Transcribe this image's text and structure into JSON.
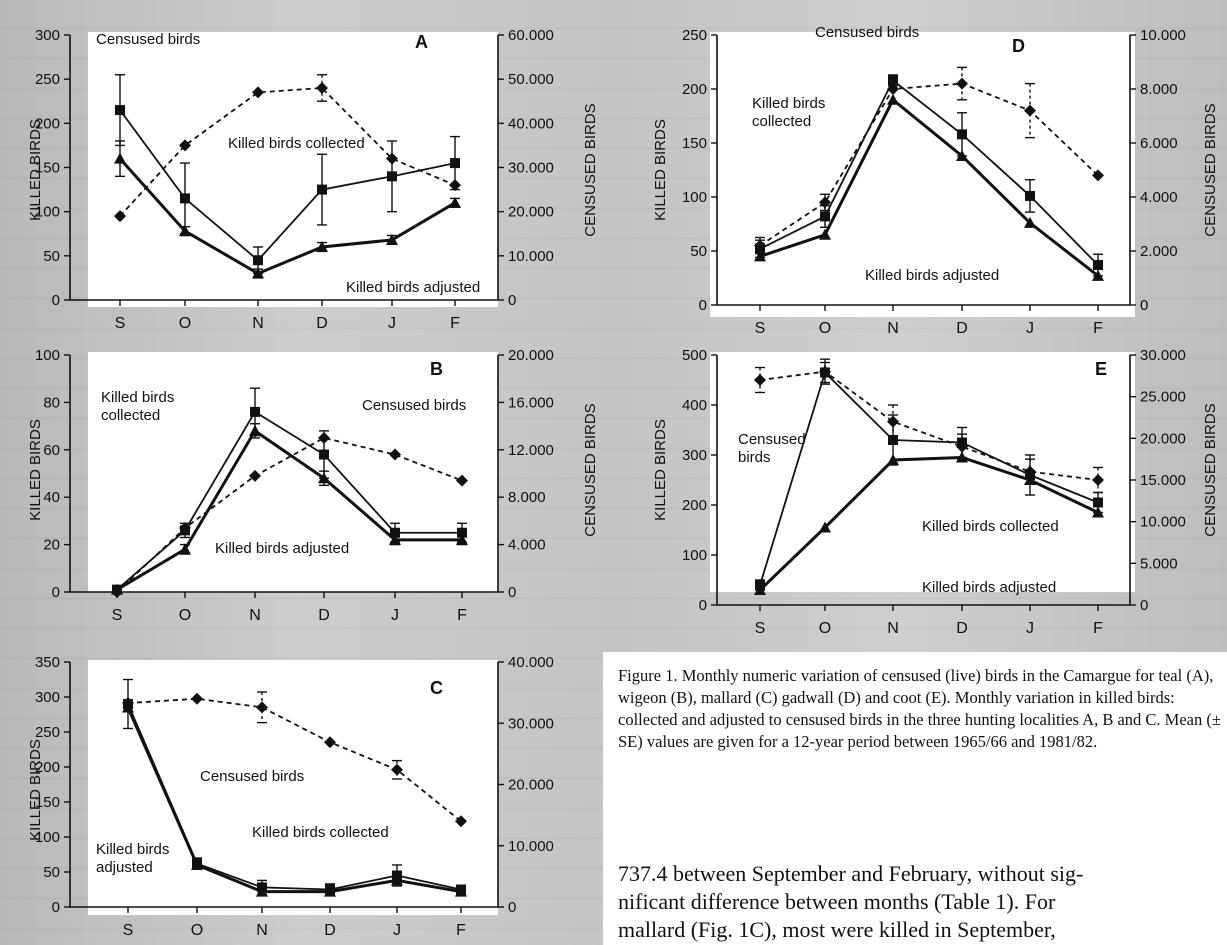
{
  "caption": "Figure 1. Monthly numeric variation of censused (live) birds in the Camargue for teal (A), wigeon (B), mallard (C) gadwall (D) and coot (E). Monthly variation in killed birds: collected and adjusted to censused birds in the three hunting localities A, B and C. Mean (± SE) values are given for a 12-year period between 1965/66 and 1981/82.",
  "body_text": "737.4 between September and February, without sig-\nnificant difference between months (Table 1). For\nmallard (Fig. 1C), most were killed in September,",
  "colors": {
    "ink": "#111111",
    "panel": "#ffffff",
    "page": "#c9c9c9"
  },
  "chart_data": [
    {
      "type": "line",
      "panel": "A",
      "categories": [
        "S",
        "O",
        "N",
        "D",
        "J",
        "F"
      ],
      "ylabel": "KILLED BIRDS",
      "y2label": "CENSUSED BIRDS",
      "ylim": [
        0,
        300
      ],
      "y2lim": [
        0,
        60000
      ],
      "yticks": [
        "0",
        "50",
        "100",
        "150",
        "200",
        "250",
        "300"
      ],
      "y2ticks": [
        "0",
        "10.000",
        "20.000",
        "30.000",
        "40.000",
        "50.000",
        "60.000"
      ],
      "series": [
        {
          "name": "Killed birds collected",
          "marker": "square",
          "axis": "left",
          "values": [
            215,
            115,
            45,
            125,
            140,
            155
          ],
          "errors": [
            40,
            40,
            15,
            40,
            40,
            30
          ]
        },
        {
          "name": "Killed birds adjusted",
          "marker": "triangle",
          "axis": "left",
          "values": [
            160,
            78,
            30,
            60,
            68,
            110
          ],
          "errors": [
            20,
            5,
            5,
            5,
            5,
            5
          ]
        },
        {
          "name": "Censused birds",
          "marker": "diamond",
          "axis": "right",
          "dashed": true,
          "values": [
            19000,
            35000,
            47000,
            48000,
            32000,
            26000
          ],
          "errors": [
            0,
            0,
            0,
            3000,
            0,
            0
          ]
        }
      ],
      "annotations": [
        "Censused birds",
        "Killed birds collected",
        "Killed birds adjusted",
        "A"
      ]
    },
    {
      "type": "line",
      "panel": "B",
      "categories": [
        "S",
        "O",
        "N",
        "D",
        "J",
        "F"
      ],
      "ylabel": "KILLED BIRDS",
      "y2label": "CENSUSED BIRDS",
      "ylim": [
        0,
        100
      ],
      "y2lim": [
        0,
        20000
      ],
      "yticks": [
        "0",
        "20",
        "40",
        "60",
        "80",
        "100"
      ],
      "y2ticks": [
        "0",
        "4.000",
        "8.000",
        "12.000",
        "16.000",
        "20.000"
      ],
      "series": [
        {
          "name": "Killed birds collected",
          "marker": "square",
          "axis": "left",
          "values": [
            1,
            26,
            76,
            58,
            25,
            25
          ],
          "errors": [
            0,
            3,
            10,
            10,
            4,
            4
          ]
        },
        {
          "name": "Killed birds adjusted",
          "marker": "triangle",
          "axis": "left",
          "values": [
            1,
            18,
            68,
            48,
            22,
            22
          ],
          "errors": [
            0,
            2,
            3,
            3,
            2,
            2
          ]
        },
        {
          "name": "Censused birds",
          "marker": "diamond",
          "axis": "right",
          "dashed": true,
          "values": [
            0,
            5400,
            9800,
            13000,
            11600,
            9400
          ],
          "errors": [
            0,
            0,
            0,
            0,
            0,
            0
          ]
        }
      ],
      "annotations": [
        "Killed birds collected",
        "Censused birds",
        "Killed birds adjusted",
        "B"
      ]
    },
    {
      "type": "line",
      "panel": "C",
      "categories": [
        "S",
        "O",
        "N",
        "D",
        "J",
        "F"
      ],
      "ylabel": "KILLED BIRDS",
      "y2label": "",
      "ylim": [
        0,
        350
      ],
      "y2lim": [
        0,
        40000
      ],
      "yticks": [
        "0",
        "50",
        "100",
        "150",
        "200",
        "250",
        "300",
        "350"
      ],
      "y2ticks": [
        "0",
        "10.000",
        "20.000",
        "30.000",
        "40.000"
      ],
      "series": [
        {
          "name": "Killed birds collected",
          "marker": "square",
          "axis": "left",
          "values": [
            290,
            62,
            28,
            25,
            45,
            25
          ],
          "errors": [
            35,
            8,
            10,
            8,
            15,
            6
          ]
        },
        {
          "name": "Killed birds adjusted",
          "marker": "triangle",
          "axis": "left",
          "values": [
            285,
            60,
            22,
            22,
            38,
            22
          ],
          "errors": [
            0,
            0,
            0,
            0,
            0,
            0
          ]
        },
        {
          "name": "Censused birds",
          "marker": "diamond",
          "axis": "right",
          "dashed": true,
          "values": [
            33300,
            34000,
            32600,
            26900,
            22400,
            14000
          ],
          "errors": [
            0,
            0,
            2500,
            0,
            1500,
            0
          ]
        }
      ],
      "annotations": [
        "Censused birds",
        "Killed birds collected",
        "Killed birds adjusted",
        "C"
      ]
    },
    {
      "type": "line",
      "panel": "D",
      "categories": [
        "S",
        "O",
        "N",
        "D",
        "J",
        "F"
      ],
      "ylabel": "KILLED BIRDS",
      "y2label": "CENSUSED BIRDS",
      "ylim": [
        0,
        250
      ],
      "y2lim": [
        0,
        10000
      ],
      "yticks": [
        "0",
        "50",
        "100",
        "150",
        "200",
        "250"
      ],
      "y2ticks": [
        "0",
        "2.000",
        "4.000",
        "6.000",
        "8.000",
        "10.000"
      ],
      "series": [
        {
          "name": "Killed birds collected",
          "marker": "square",
          "axis": "left",
          "values": [
            52,
            82,
            208,
            158,
            101,
            37
          ],
          "errors": [
            8,
            10,
            5,
            20,
            15,
            10
          ]
        },
        {
          "name": "Killed birds adjusted",
          "marker": "triangle",
          "axis": "left",
          "values": [
            45,
            65,
            190,
            138,
            76,
            27
          ],
          "errors": [
            0,
            0,
            0,
            0,
            0,
            0
          ]
        },
        {
          "name": "Censused birds",
          "marker": "diamond",
          "axis": "right",
          "dashed": true,
          "values": [
            2200,
            3800,
            8000,
            8200,
            7200,
            4800
          ],
          "errors": [
            300,
            300,
            0,
            600,
            1000,
            0
          ]
        }
      ],
      "annotations": [
        "Censused birds",
        "Killed birds collected",
        "Killed birds adjusted",
        "D"
      ]
    },
    {
      "type": "line",
      "panel": "E",
      "categories": [
        "S",
        "O",
        "N",
        "D",
        "J",
        "F"
      ],
      "ylabel": "KILLED BIRDS",
      "y2label": "CENSUSED BIRDS",
      "ylim": [
        0,
        500
      ],
      "y2lim": [
        0,
        30000
      ],
      "yticks": [
        "0",
        "100",
        "200",
        "300",
        "400",
        "500"
      ],
      "y2ticks": [
        "0",
        "5.000",
        "10.000",
        "15.000",
        "20.000",
        "25.000",
        "30.000"
      ],
      "series": [
        {
          "name": "Killed birds collected",
          "marker": "square",
          "axis": "left",
          "values": [
            40,
            465,
            330,
            325,
            260,
            205
          ],
          "errors": [
            10,
            20,
            50,
            30,
            40,
            20
          ]
        },
        {
          "name": "Killed birds adjusted",
          "marker": "triangle",
          "axis": "left",
          "values": [
            30,
            155,
            290,
            295,
            250,
            185
          ],
          "errors": [
            0,
            0,
            0,
            0,
            0,
            0
          ]
        },
        {
          "name": "Censused birds",
          "marker": "diamond",
          "axis": "right",
          "dashed": true,
          "values": [
            27000,
            28000,
            22000,
            19000,
            16000,
            15000
          ],
          "errors": [
            1500,
            1500,
            2000,
            1500,
            1500,
            1500
          ]
        }
      ],
      "annotations": [
        "Censused birds",
        "Killed birds collected",
        "Killed birds adjusted",
        "E"
      ]
    }
  ]
}
